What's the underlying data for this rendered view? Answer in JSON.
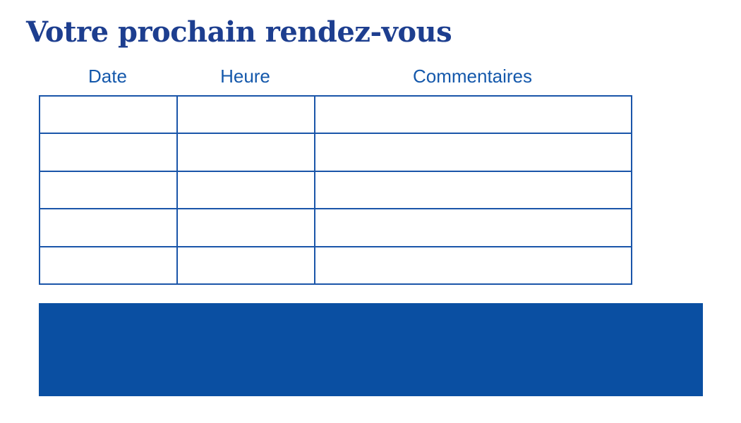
{
  "page": {
    "title": "Votre prochain rendez-vous"
  },
  "table": {
    "headers": [
      "Date",
      "Heure",
      "Commentaires"
    ],
    "rows": [
      [
        "",
        "",
        ""
      ],
      [
        "",
        "",
        ""
      ],
      [
        "",
        "",
        ""
      ],
      [
        "",
        "",
        ""
      ],
      [
        "",
        "",
        ""
      ]
    ]
  },
  "colors": {
    "title": "#1d3e8f",
    "header_text": "#1458ab",
    "table_border": "#1a55a9",
    "footer_rect": "#0a4fa2"
  }
}
